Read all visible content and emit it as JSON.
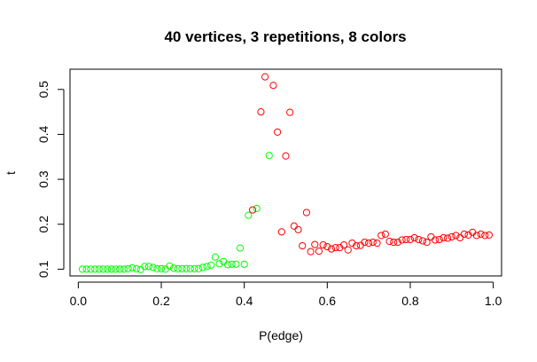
{
  "chart_data": {
    "type": "scatter",
    "title": "40 vertices, 3 repetitions, 8 colors",
    "xlabel": "P(edge)",
    "ylabel": "t",
    "xlim": [
      -0.02,
      1.02
    ],
    "ylim": [
      0.085,
      0.545
    ],
    "xticks": [
      0.0,
      0.2,
      0.4,
      0.6,
      0.8,
      1.0
    ],
    "xtick_labels": [
      "0.0",
      "0.2",
      "0.4",
      "0.6",
      "0.8",
      "1.0"
    ],
    "yticks": [
      0.1,
      0.2,
      0.3,
      0.4,
      0.5
    ],
    "ytick_labels": [
      "0.1",
      "0.2",
      "0.3",
      "0.4",
      "0.5"
    ],
    "grid": false,
    "series": [
      {
        "color": "#00ff00",
        "x": [
          0.01,
          0.02,
          0.03,
          0.04,
          0.05,
          0.06,
          0.07,
          0.08,
          0.09,
          0.1,
          0.11,
          0.12,
          0.13,
          0.14,
          0.15,
          0.16,
          0.17,
          0.18,
          0.19,
          0.2,
          0.21,
          0.22,
          0.23,
          0.24,
          0.25,
          0.26,
          0.27,
          0.28,
          0.29,
          0.3,
          0.31,
          0.32,
          0.33,
          0.34,
          0.35,
          0.36,
          0.37,
          0.38,
          0.39,
          0.4,
          0.41,
          0.43,
          0.46
        ],
        "y": [
          0.1,
          0.1,
          0.1,
          0.1,
          0.1,
          0.1,
          0.1,
          0.1,
          0.1,
          0.1,
          0.1,
          0.101,
          0.103,
          0.101,
          0.099,
          0.106,
          0.106,
          0.104,
          0.101,
          0.101,
          0.1,
          0.107,
          0.102,
          0.101,
          0.101,
          0.101,
          0.101,
          0.101,
          0.101,
          0.104,
          0.106,
          0.109,
          0.127,
          0.112,
          0.117,
          0.11,
          0.111,
          0.111,
          0.147,
          0.111,
          0.22,
          0.235,
          0.353
        ]
      },
      {
        "color": "#ff0000",
        "x": [
          0.42,
          0.44,
          0.45,
          0.47,
          0.48,
          0.49,
          0.5,
          0.51,
          0.52,
          0.53,
          0.54,
          0.55,
          0.56,
          0.57,
          0.58,
          0.59,
          0.6,
          0.61,
          0.62,
          0.63,
          0.64,
          0.65,
          0.66,
          0.67,
          0.68,
          0.69,
          0.7,
          0.71,
          0.72,
          0.73,
          0.74,
          0.75,
          0.76,
          0.77,
          0.78,
          0.79,
          0.8,
          0.81,
          0.82,
          0.83,
          0.84,
          0.85,
          0.86,
          0.87,
          0.88,
          0.89,
          0.9,
          0.91,
          0.92,
          0.93,
          0.94,
          0.95,
          0.96,
          0.97,
          0.98,
          0.99
        ],
        "y": [
          0.232,
          0.45,
          0.528,
          0.509,
          0.405,
          0.183,
          0.352,
          0.449,
          0.196,
          0.188,
          0.152,
          0.226,
          0.139,
          0.155,
          0.14,
          0.154,
          0.15,
          0.145,
          0.148,
          0.148,
          0.154,
          0.143,
          0.158,
          0.152,
          0.153,
          0.16,
          0.158,
          0.16,
          0.158,
          0.175,
          0.178,
          0.162,
          0.16,
          0.16,
          0.165,
          0.166,
          0.166,
          0.17,
          0.166,
          0.163,
          0.16,
          0.172,
          0.165,
          0.166,
          0.17,
          0.169,
          0.172,
          0.175,
          0.17,
          0.178,
          0.176,
          0.182,
          0.175,
          0.178,
          0.175,
          0.176
        ]
      }
    ]
  }
}
